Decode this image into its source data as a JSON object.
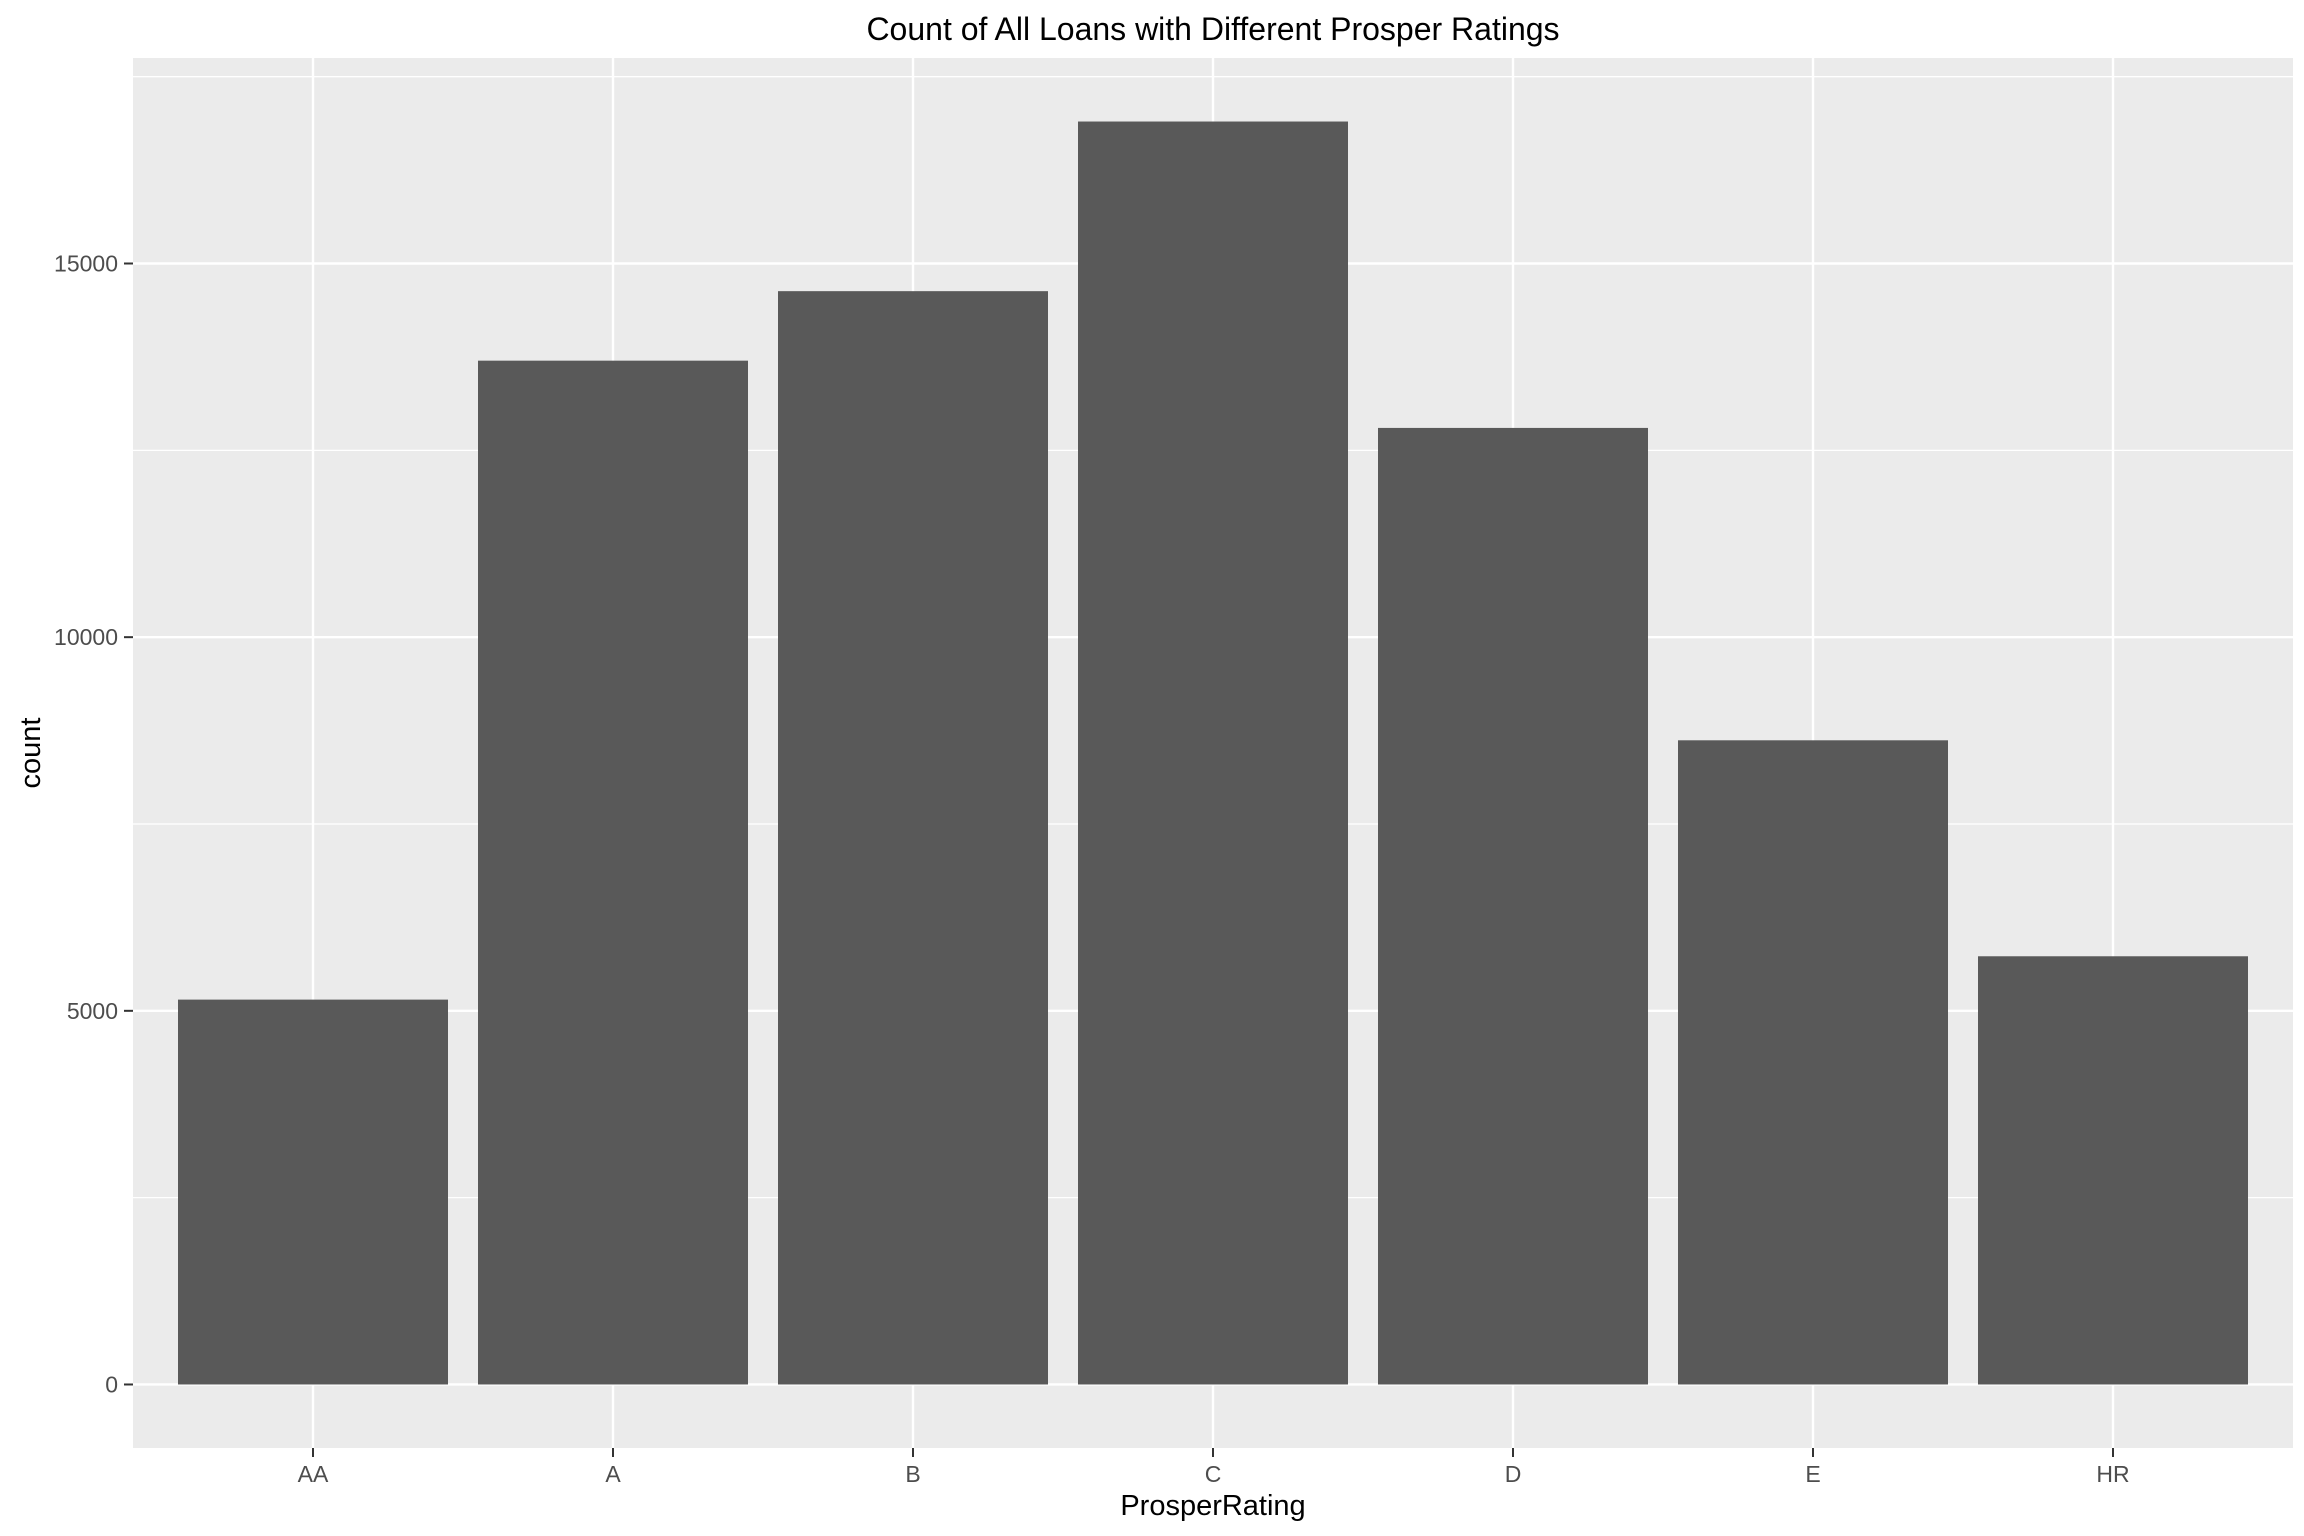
{
  "chart_data": {
    "type": "bar",
    "title": "Count of All Loans with Different Prosper Ratings",
    "xlabel": "ProsperRating",
    "ylabel": "count",
    "categories": [
      "AA",
      "A",
      "B",
      "C",
      "D",
      "E",
      "HR"
    ],
    "values": [
      5150,
      13700,
      14630,
      16900,
      12800,
      8620,
      5730
    ],
    "ylim": [
      -850,
      17750
    ],
    "yticks": [
      0,
      5000,
      10000,
      15000
    ],
    "ytick_labels": [
      "0",
      "5000",
      "10000",
      "15000"
    ],
    "y_minor_ticks": [
      2500,
      7500,
      12500,
      17500
    ],
    "grid": true,
    "legend": "none",
    "colors": {
      "panel_background": "#ebebeb",
      "grid_major": "#ffffff",
      "bar_fill": "#595959",
      "tick_color": "#333333",
      "tick_label_color": "#4d4d4d",
      "text_color": "#000000"
    }
  }
}
